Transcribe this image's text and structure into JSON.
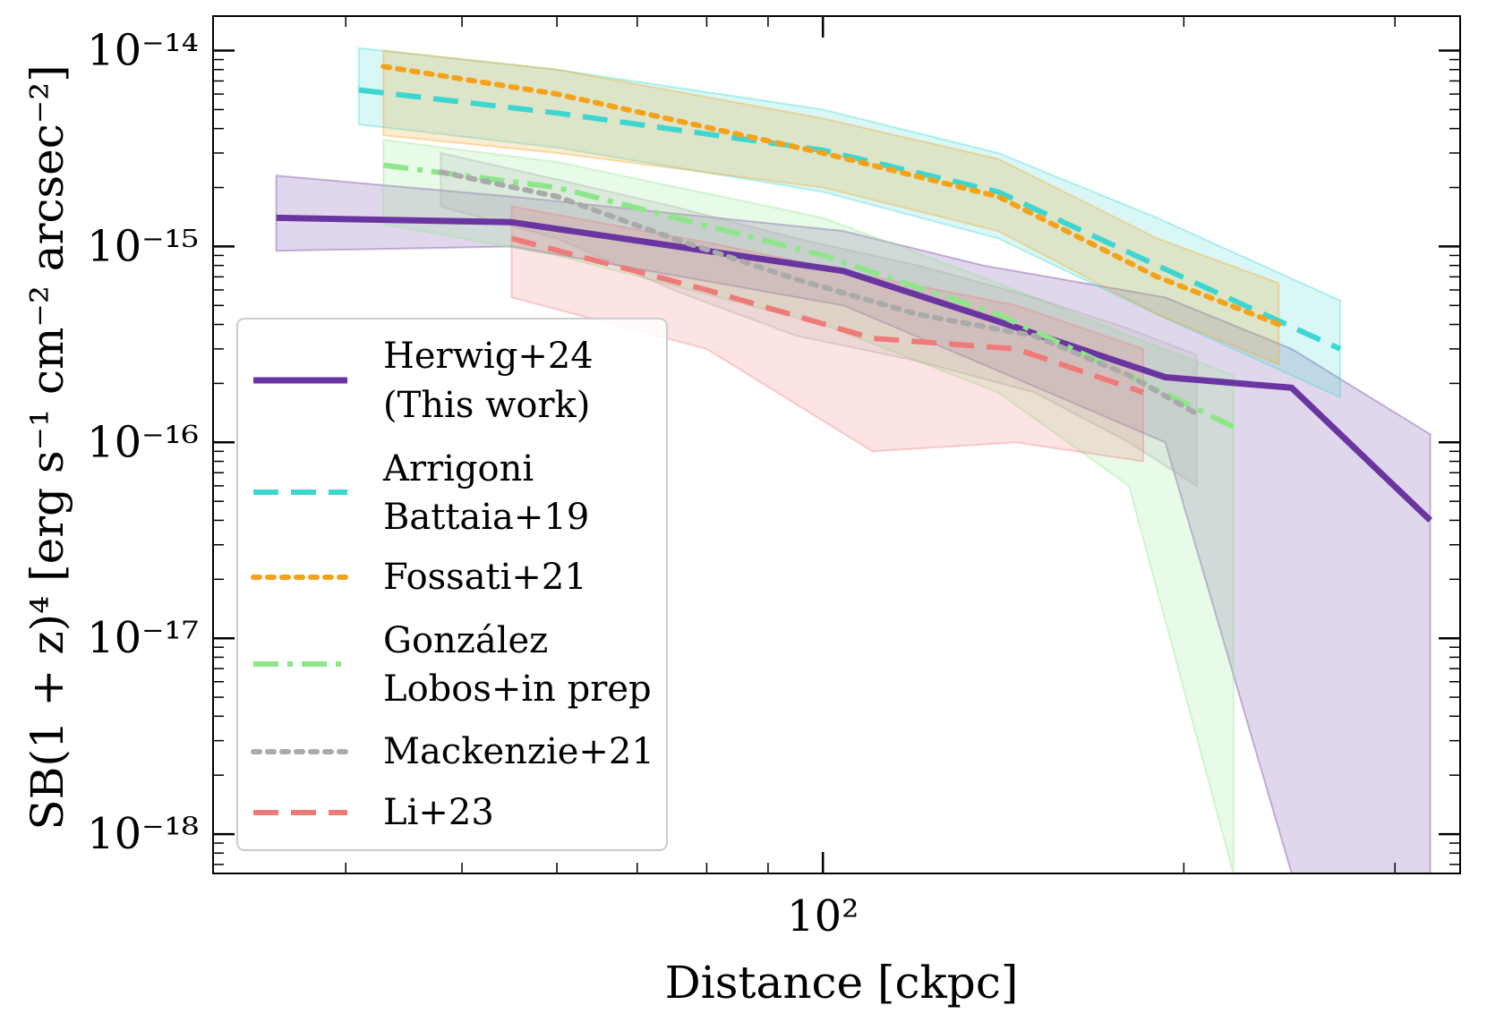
{
  "chart_data": {
    "type": "line",
    "title": "",
    "xlabel": "Distance [ckpc]",
    "ylabel": "SB(1 + z)⁴ [erg s⁻¹ cm⁻² arcsec⁻²]",
    "xscale": "log",
    "yscale": "log",
    "xlim": [
      31,
      340
    ],
    "ylim": [
      6.3e-19,
      1.5e-14
    ],
    "x_tick_labels": [
      {
        "value": 100,
        "label": "10²"
      }
    ],
    "y_tick_labels": [
      {
        "value": 1e-14,
        "label": "10⁻¹⁴"
      },
      {
        "value": 1e-15,
        "label": "10⁻¹⁵"
      },
      {
        "value": 1e-16,
        "label": "10⁻¹⁶"
      },
      {
        "value": 1e-17,
        "label": "10⁻¹⁷"
      },
      {
        "value": 1e-18,
        "label": "10⁻¹⁸"
      }
    ],
    "legend_position": "center-left",
    "series": [
      {
        "name": "Herwig+24",
        "name_line2": "(This work)",
        "color": "#6a35a0",
        "style": "solid",
        "x": [
          35,
          55,
          104,
          136,
          193,
          246,
          321
        ],
        "y": [
          1.4e-15,
          1.33e-15,
          7.5e-16,
          4.4e-16,
          2.15e-16,
          1.9e-16,
          4e-17
        ],
        "band_x": [
          35,
          55,
          104,
          136,
          193,
          246,
          321
        ],
        "band_upper": [
          2.3e-15,
          1.8e-15,
          1.2e-15,
          8e-16,
          5.5e-16,
          3e-16,
          1.1e-16
        ],
        "band_lower": [
          9.5e-16,
          1e-15,
          5e-16,
          2.5e-16,
          1e-16,
          6.3e-19,
          6.3e-19
        ]
      },
      {
        "name": "Arrigoni",
        "name_line2": "Battaia+19",
        "color": "#3dd6d0",
        "style": "dashed",
        "x": [
          41,
          60,
          100,
          140,
          190,
          270
        ],
        "y": [
          6.3e-15,
          4.8e-15,
          3.1e-15,
          1.9e-15,
          8e-16,
          3e-16
        ],
        "band_x": [
          41,
          60,
          100,
          140,
          190,
          270
        ],
        "band_upper": [
          1.03e-14,
          8e-15,
          5e-15,
          3e-15,
          1.4e-15,
          5.3e-16
        ],
        "band_lower": [
          4.2e-15,
          3.2e-15,
          1.9e-15,
          1.1e-15,
          4.5e-16,
          1.7e-16
        ]
      },
      {
        "name": "Fossati+21",
        "color": "#f5a21b",
        "style": "dotted",
        "x": [
          43,
          60,
          100,
          140,
          190,
          240
        ],
        "y": [
          8.3e-15,
          6e-15,
          3e-15,
          1.8e-15,
          7e-16,
          4e-16
        ],
        "band_x": [
          43,
          60,
          100,
          140,
          190,
          240
        ],
        "band_upper": [
          1e-14,
          8e-15,
          4.5e-15,
          2.8e-15,
          1.1e-15,
          6.5e-16
        ],
        "band_lower": [
          3.7e-15,
          3e-15,
          2e-15,
          1.2e-15,
          4.5e-16,
          2.5e-16
        ]
      },
      {
        "name": "González",
        "name_line2": "Lobos+in prep",
        "color": "#8ee68a",
        "style": "dashdot",
        "x": [
          43,
          60,
          100,
          140,
          180,
          220
        ],
        "y": [
          2.6e-15,
          2e-15,
          9e-16,
          4.5e-16,
          2.2e-16,
          1.2e-16
        ],
        "band_x": [
          43,
          60,
          100,
          140,
          180,
          220
        ],
        "band_upper": [
          3.5e-15,
          2.7e-15,
          1.4e-15,
          6.5e-16,
          3.5e-16,
          2.2e-16
        ],
        "band_lower": [
          1.3e-15,
          9e-16,
          4e-16,
          1.8e-16,
          6e-17,
          6.3e-19
        ]
      },
      {
        "name": "Mackenzie+21",
        "color": "#aaaaaa",
        "style": "dotted",
        "x": [
          48,
          60,
          75,
          95,
          120,
          150,
          180,
          205
        ],
        "y": [
          2.4e-15,
          1.8e-15,
          1.1e-15,
          6.8e-16,
          4.5e-16,
          3.5e-16,
          2.2e-16,
          1.4e-16
        ],
        "band_x": [
          48,
          60,
          75,
          95,
          120,
          150,
          180,
          205
        ],
        "band_upper": [
          3e-15,
          2.2e-15,
          1.6e-15,
          1.1e-15,
          8e-16,
          5.5e-16,
          3.8e-16,
          2.8e-16
        ],
        "band_lower": [
          1.6e-15,
          1.1e-15,
          6e-16,
          3.5e-16,
          2.6e-16,
          1.8e-16,
          1e-16,
          6e-17
        ]
      },
      {
        "name": "Li+23",
        "color": "#ef7a7a",
        "style": "dashed",
        "x": [
          55,
          80,
          110,
          145,
          185
        ],
        "y": [
          1.1e-15,
          6e-16,
          3.4e-16,
          3e-16,
          1.8e-16
        ],
        "band_x": [
          55,
          80,
          110,
          145,
          185
        ],
        "band_upper": [
          1.6e-15,
          1.05e-15,
          7e-16,
          5e-16,
          3e-16
        ],
        "band_lower": [
          5.5e-16,
          3e-16,
          9e-17,
          1e-16,
          8e-17
        ]
      }
    ]
  }
}
